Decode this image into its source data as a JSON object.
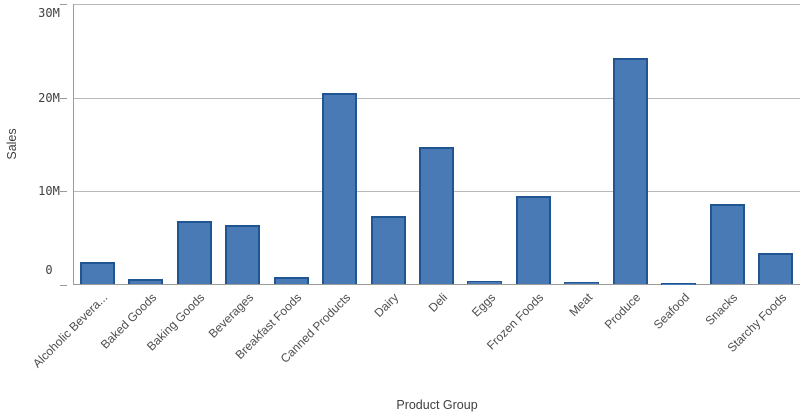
{
  "chart_data": {
    "type": "bar",
    "title": "",
    "ylabel": "Sales",
    "xlabel": "Product Group",
    "categories": [
      "Alcoholic Bevera...",
      "Baked Goods",
      "Baking Goods",
      "Beverages",
      "Breakfast Foods",
      "Canned Products",
      "Dairy",
      "Deli",
      "Eggs",
      "Frozen Foods",
      "Meat",
      "Produce",
      "Seafood",
      "Snacks",
      "Starchy Foods"
    ],
    "values_millions": [
      2.4,
      0.6,
      6.8,
      6.4,
      0.8,
      20.5,
      7.3,
      14.7,
      0.35,
      9.5,
      0.3,
      24.2,
      0.15,
      8.6,
      3.4
    ],
    "ylim_millions": [
      0,
      30
    ],
    "y_ticks": [
      {
        "value_millions": 0,
        "label": "0"
      },
      {
        "value_millions": 10,
        "label": "10M"
      },
      {
        "value_millions": 20,
        "label": "20M"
      },
      {
        "value_millions": 30,
        "label": "30M"
      }
    ],
    "grid": true,
    "legend": false,
    "colors": {
      "bar_fill": "#4a7ab5",
      "bar_border": "#1f5591",
      "gridline": "#b8b8b8",
      "axis": "#9a9a9a",
      "label": "#4d4d4d",
      "tick_label": "#404040",
      "background": "#ffffff"
    }
  }
}
